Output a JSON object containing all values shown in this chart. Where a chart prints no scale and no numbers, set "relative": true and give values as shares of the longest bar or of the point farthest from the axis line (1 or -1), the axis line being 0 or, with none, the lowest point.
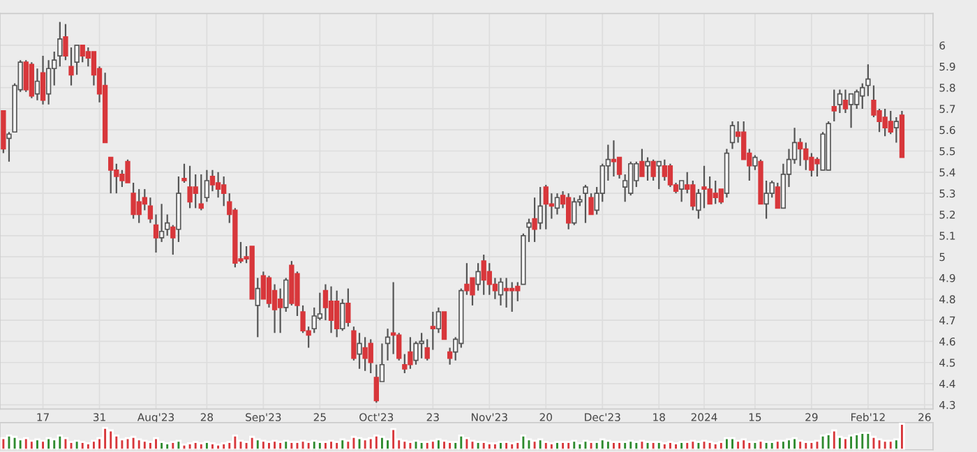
{
  "chart_data": [
    {
      "type": "candlestick",
      "colors": [
        "#d8373b",
        "#f5f5f5",
        "#f5f5f5",
        "#f5f5f5",
        "#d8373b",
        "#d8373b",
        "#f5f5f5",
        "#d8373b",
        "#f5f5f5",
        "#f5f5f5",
        "#f5f5f5",
        "#d8373b",
        "#d8373b",
        "#f5f5f5",
        "#d8373b",
        "#d8373b",
        "#d8373b",
        "#d8373b",
        "#d8373b",
        "#d8373b",
        "#d8373b",
        "#d8373b",
        "#d8373b",
        "#d8373b",
        "#d8373b",
        "#d8373b",
        "#d8373b",
        "#d8373b",
        "#f5f5f5",
        "#f5f5f5",
        "#d8373b",
        "#f5f5f5",
        "#d8373b",
        "#d8373b",
        "#d8373b",
        "#d8373b",
        "#f5f5f5",
        "#d8373b",
        "#d8373b",
        "#d8373b",
        "#d8373b",
        "#d8373b",
        "#d8373b",
        "#d8373b",
        "#d8373b",
        "#f5f5f5",
        "#d8373b",
        "#d8373b",
        "#d8373b",
        "#d8373b",
        "#f5f5f5",
        "#d8373b",
        "#d8373b",
        "#d8373b",
        "#d8373b",
        "#f5f5f5",
        "#f5f5f5",
        "#d8373b",
        "#d8373b",
        "#d8373b",
        "#f5f5f5",
        "#d8373b",
        "#d8373b",
        "#f5f5f5",
        "#d8373b",
        "#d8373b",
        "#d8373b",
        "#f5f5f5",
        "#f5f5f5",
        "#d8373b",
        "#d8373b",
        "#d8373b",
        "#d8373b",
        "#f5f5f5",
        "#f5f5f5",
        "#d8373b",
        "#d8373b",
        "#f5f5f5",
        "#d8373b",
        "#d8373b",
        "#f5f5f5",
        "#f5f5f5",
        "#d8373b",
        "#d8373b",
        "#f5f5f5",
        "#d8373b",
        "#d8373b",
        "#d8373b",
        "#f5f5f5",
        "#d8373b",
        "#d8373b",
        "#d8373b",
        "#f5f5f5",
        "#f5f5f5",
        "#d8373b",
        "#f5f5f5",
        "#d8373b",
        "#d8373b",
        "#f5f5f5",
        "#d8373b",
        "#d8373b",
        "#f5f5f5",
        "#f5f5f5",
        "#f5f5f5",
        "#d8373b",
        "#f5f5f5",
        "#f5f5f5",
        "#f5f5f5",
        "#d8373b",
        "#d8373b",
        "#f5f5f5",
        "#f5f5f5",
        "#f5f5f5",
        "#d8373b",
        "#f5f5f5",
        "#d8373b",
        "#f5f5f5",
        "#d8373b",
        "#d8373b",
        "#d8373b",
        "#f5f5f5",
        "#d8373b",
        "#d8373b",
        "#f5f5f5",
        "#d8373b",
        "#d8373b",
        "#d8373b",
        "#d8373b",
        "#f5f5f5",
        "#f5f5f5",
        "#d8373b",
        "#d8373b",
        "#d8373b",
        "#f5f5f5",
        "#d8373b",
        "#f5f5f5",
        "#f5f5f5",
        "#d8373b",
        "#f5f5f5",
        "#f5f5f5",
        "#f5f5f5",
        "#d8373b",
        "#d8373b",
        "#d8373b",
        "#d8373b",
        "#f5f5f5",
        "#f5f5f5",
        "#d8373b",
        "#f5f5f5",
        "#d8373b",
        "#f5f5f5",
        "#f5f5f5",
        "#f5f5f5",
        "#f5f5f5",
        "#d8373b",
        "#d8373b",
        "#d8373b",
        "#d8373b",
        "#f5f5f5",
        "#d8373b",
        null,
        null,
        null,
        null
      ],
      "categories": [
        null,
        null,
        null,
        null,
        null,
        null,
        null,
        "17",
        null,
        null,
        null,
        null,
        null,
        null,
        null,
        null,
        null,
        "31",
        null,
        null,
        null,
        null,
        null,
        null,
        null,
        null,
        null,
        "Aug'23",
        null,
        null,
        null,
        null,
        null,
        null,
        null,
        null,
        "28",
        null,
        null,
        null,
        null,
        null,
        null,
        null,
        null,
        null,
        "Sep'23",
        null,
        null,
        null,
        null,
        null,
        null,
        null,
        null,
        null,
        "25",
        null,
        null,
        null,
        null,
        null,
        null,
        null,
        null,
        null,
        "Oct'23",
        null,
        null,
        null,
        null,
        null,
        null,
        null,
        null,
        null,
        "23",
        null,
        null,
        null,
        null,
        null,
        null,
        null,
        null,
        null,
        "Nov'23",
        null,
        null,
        null,
        null,
        null,
        null,
        null,
        null,
        null,
        "20",
        null,
        null,
        null,
        null,
        null,
        null,
        null,
        null,
        null,
        "Dec'23",
        null,
        null,
        null,
        null,
        null,
        null,
        null,
        null,
        null,
        "18",
        null,
        null,
        null,
        null,
        null,
        null,
        null,
        "2024",
        null,
        null,
        null,
        null,
        null,
        null,
        null,
        null,
        "15",
        null,
        null,
        null,
        null,
        null,
        null,
        null,
        null,
        null,
        "29",
        null,
        null,
        null,
        null,
        null,
        null,
        null,
        null,
        null,
        "Feb'12",
        null,
        null,
        null,
        null,
        null,
        null,
        null,
        null,
        null,
        "26"
      ],
      "ohlc": [
        [
          5.69,
          5.69,
          5.49,
          5.51
        ],
        [
          5.56,
          5.59,
          5.45,
          5.58
        ],
        [
          5.59,
          5.82,
          5.59,
          5.81
        ],
        [
          5.79,
          5.93,
          5.78,
          5.92
        ],
        [
          5.92,
          5.93,
          5.78,
          5.79
        ],
        [
          5.91,
          5.92,
          5.75,
          5.76
        ],
        [
          5.77,
          5.89,
          5.74,
          5.83
        ],
        [
          5.87,
          5.95,
          5.72,
          5.74
        ],
        [
          5.77,
          5.93,
          5.72,
          5.89
        ],
        [
          5.89,
          5.97,
          5.81,
          5.93
        ],
        [
          5.95,
          6.11,
          5.9,
          6.03
        ],
        [
          6.04,
          6.1,
          5.93,
          5.95
        ],
        [
          5.9,
          5.99,
          5.81,
          5.86
        ],
        [
          5.92,
          6.0,
          5.86,
          6.0
        ],
        [
          6.0,
          6.0,
          5.92,
          5.95
        ],
        [
          5.97,
          5.99,
          5.9,
          5.94
        ],
        [
          5.97,
          5.97,
          5.81,
          5.86
        ],
        [
          5.89,
          5.9,
          5.73,
          5.77
        ],
        [
          5.81,
          5.87,
          5.54,
          5.54
        ],
        [
          5.47,
          5.47,
          5.3,
          5.41
        ],
        [
          5.41,
          5.44,
          5.3,
          5.38
        ],
        [
          5.39,
          5.41,
          5.33,
          5.36
        ],
        [
          5.45,
          5.46,
          5.35,
          5.35
        ],
        [
          5.3,
          5.35,
          5.18,
          5.2
        ],
        [
          5.26,
          5.32,
          5.16,
          5.2
        ],
        [
          5.28,
          5.32,
          5.22,
          5.25
        ],
        [
          5.24,
          5.28,
          5.16,
          5.18
        ],
        [
          5.15,
          5.2,
          5.02,
          5.09
        ],
        [
          5.09,
          5.25,
          5.07,
          5.12
        ],
        [
          5.13,
          5.2,
          5.1,
          5.16
        ],
        [
          5.14,
          5.15,
          5.01,
          5.09
        ],
        [
          5.13,
          5.38,
          5.07,
          5.3
        ],
        [
          5.37,
          5.44,
          5.35,
          5.36
        ],
        [
          5.33,
          5.43,
          5.23,
          5.26
        ],
        [
          5.33,
          5.39,
          5.23,
          5.3
        ],
        [
          5.25,
          5.39,
          5.22,
          5.23
        ],
        [
          5.28,
          5.41,
          5.26,
          5.36
        ],
        [
          5.38,
          5.41,
          5.31,
          5.34
        ],
        [
          5.35,
          5.4,
          5.28,
          5.32
        ],
        [
          5.34,
          5.38,
          5.24,
          5.3
        ],
        [
          5.26,
          5.3,
          5.16,
          5.2
        ],
        [
          5.22,
          5.23,
          4.95,
          4.97
        ],
        [
          4.99,
          5.07,
          4.97,
          4.98
        ],
        [
          5.0,
          5.05,
          4.97,
          4.99
        ],
        [
          5.05,
          5.05,
          4.8,
          4.8
        ],
        [
          4.77,
          4.9,
          4.62,
          4.85
        ],
        [
          4.91,
          4.93,
          4.8,
          4.8
        ],
        [
          4.9,
          4.91,
          4.76,
          4.78
        ],
        [
          4.84,
          4.87,
          4.64,
          4.75
        ],
        [
          4.8,
          4.85,
          4.64,
          4.76
        ],
        [
          4.76,
          4.9,
          4.74,
          4.89
        ],
        [
          4.96,
          4.98,
          4.77,
          4.78
        ],
        [
          4.92,
          4.93,
          4.72,
          4.77
        ],
        [
          4.74,
          4.77,
          4.64,
          4.65
        ],
        [
          4.65,
          4.67,
          4.57,
          4.63
        ],
        [
          4.66,
          4.76,
          4.64,
          4.72
        ],
        [
          4.71,
          4.83,
          4.7,
          4.73
        ],
        [
          4.84,
          4.87,
          4.7,
          4.76
        ],
        [
          4.79,
          4.86,
          4.64,
          4.7
        ],
        [
          4.79,
          4.84,
          4.62,
          4.66
        ],
        [
          4.66,
          4.8,
          4.65,
          4.78
        ],
        [
          4.78,
          4.85,
          4.67,
          4.69
        ],
        [
          4.65,
          4.67,
          4.51,
          4.52
        ],
        [
          4.54,
          4.64,
          4.47,
          4.59
        ],
        [
          4.57,
          4.62,
          4.46,
          4.52
        ],
        [
          4.59,
          4.61,
          4.45,
          4.5
        ],
        [
          4.43,
          4.49,
          4.31,
          4.32
        ],
        [
          4.41,
          4.59,
          4.41,
          4.49
        ],
        [
          4.59,
          4.66,
          4.51,
          4.62
        ],
        [
          4.64,
          4.88,
          4.54,
          4.63
        ],
        [
          4.63,
          4.64,
          4.51,
          4.52
        ],
        [
          4.49,
          4.54,
          4.45,
          4.47
        ],
        [
          4.55,
          4.62,
          4.47,
          4.49
        ],
        [
          4.51,
          4.6,
          4.49,
          4.59
        ],
        [
          4.59,
          4.64,
          4.52,
          4.6
        ],
        [
          4.57,
          4.61,
          4.51,
          4.52
        ],
        [
          4.67,
          4.74,
          4.56,
          4.66
        ],
        [
          4.66,
          4.76,
          4.64,
          4.74
        ],
        [
          4.74,
          4.74,
          4.61,
          4.61
        ],
        [
          4.55,
          4.57,
          4.49,
          4.52
        ],
        [
          4.55,
          4.62,
          4.51,
          4.61
        ],
        [
          4.59,
          4.85,
          4.57,
          4.84
        ],
        [
          4.87,
          4.97,
          4.82,
          4.84
        ],
        [
          4.9,
          4.9,
          4.77,
          4.82
        ],
        [
          4.87,
          4.97,
          4.84,
          4.93
        ],
        [
          4.98,
          5.01,
          4.82,
          4.89
        ],
        [
          4.93,
          4.97,
          4.82,
          4.87
        ],
        [
          4.87,
          4.9,
          4.8,
          4.84
        ],
        [
          4.82,
          4.9,
          4.77,
          4.88
        ],
        [
          4.85,
          4.9,
          4.76,
          4.84
        ],
        [
          4.85,
          4.88,
          4.74,
          4.84
        ],
        [
          4.86,
          4.88,
          4.79,
          4.84
        ],
        [
          4.87,
          5.11,
          4.87,
          5.1
        ],
        [
          5.14,
          5.18,
          5.07,
          5.16
        ],
        [
          5.18,
          5.28,
          5.07,
          5.13
        ],
        [
          5.16,
          5.33,
          5.13,
          5.24
        ],
        [
          5.33,
          5.34,
          5.13,
          5.25
        ],
        [
          5.25,
          5.3,
          5.18,
          5.24
        ],
        [
          5.23,
          5.3,
          5.2,
          5.28
        ],
        [
          5.29,
          5.31,
          5.23,
          5.25
        ],
        [
          5.28,
          5.3,
          5.13,
          5.16
        ],
        [
          5.16,
          5.28,
          5.15,
          5.26
        ],
        [
          5.26,
          5.29,
          5.24,
          5.27
        ],
        [
          5.3,
          5.34,
          5.16,
          5.33
        ],
        [
          5.28,
          5.3,
          5.2,
          5.2
        ],
        [
          5.22,
          5.33,
          5.2,
          5.3
        ],
        [
          5.3,
          5.44,
          5.26,
          5.43
        ],
        [
          5.43,
          5.53,
          5.36,
          5.46
        ],
        [
          5.46,
          5.55,
          5.38,
          5.45
        ],
        [
          5.47,
          5.47,
          5.37,
          5.39
        ],
        [
          5.33,
          5.39,
          5.26,
          5.36
        ],
        [
          5.3,
          5.45,
          5.29,
          5.44
        ],
        [
          5.36,
          5.45,
          5.33,
          5.44
        ],
        [
          5.45,
          5.51,
          5.38,
          5.38
        ],
        [
          5.43,
          5.47,
          5.36,
          5.45
        ],
        [
          5.45,
          5.46,
          5.36,
          5.38
        ],
        [
          5.43,
          5.45,
          5.32,
          5.45
        ],
        [
          5.43,
          5.46,
          5.36,
          5.38
        ],
        [
          5.43,
          5.44,
          5.33,
          5.34
        ],
        [
          5.34,
          5.35,
          5.3,
          5.31
        ],
        [
          5.32,
          5.36,
          5.26,
          5.36
        ],
        [
          5.34,
          5.4,
          5.3,
          5.32
        ],
        [
          5.34,
          5.36,
          5.22,
          5.24
        ],
        [
          5.22,
          5.32,
          5.18,
          5.3
        ],
        [
          5.33,
          5.43,
          5.23,
          5.32
        ],
        [
          5.32,
          5.38,
          5.25,
          5.25
        ],
        [
          5.3,
          5.36,
          5.25,
          5.28
        ],
        [
          5.32,
          5.32,
          5.25,
          5.26
        ],
        [
          5.3,
          5.51,
          5.28,
          5.49
        ],
        [
          5.54,
          5.64,
          5.51,
          5.62
        ],
        [
          5.59,
          5.64,
          5.54,
          5.57
        ],
        [
          5.59,
          5.64,
          5.46,
          5.46
        ],
        [
          5.49,
          5.51,
          5.36,
          5.43
        ],
        [
          5.43,
          5.48,
          5.41,
          5.47
        ],
        [
          5.45,
          5.46,
          5.25,
          5.25
        ],
        [
          5.25,
          5.36,
          5.18,
          5.3
        ],
        [
          5.3,
          5.36,
          5.28,
          5.35
        ],
        [
          5.33,
          5.35,
          5.23,
          5.23
        ],
        [
          5.23,
          5.44,
          5.23,
          5.39
        ],
        [
          5.39,
          5.51,
          5.33,
          5.46
        ],
        [
          5.46,
          5.61,
          5.44,
          5.54
        ],
        [
          5.54,
          5.56,
          5.43,
          5.51
        ],
        [
          5.51,
          5.54,
          5.41,
          5.46
        ],
        [
          5.47,
          5.49,
          5.38,
          5.41
        ],
        [
          5.46,
          5.47,
          5.38,
          5.44
        ],
        [
          5.41,
          5.59,
          5.41,
          5.58
        ],
        [
          5.41,
          5.64,
          5.41,
          5.63
        ],
        [
          5.71,
          5.79,
          5.64,
          5.69
        ],
        [
          5.72,
          5.79,
          5.68,
          5.77
        ],
        [
          5.74,
          5.79,
          5.68,
          5.7
        ],
        [
          5.72,
          5.77,
          5.61,
          5.77
        ],
        [
          5.72,
          5.79,
          5.7,
          5.78
        ],
        [
          5.76,
          5.82,
          5.7,
          5.8
        ],
        [
          5.81,
          5.91,
          5.76,
          5.84
        ],
        [
          5.74,
          5.81,
          5.66,
          5.67
        ],
        [
          5.69,
          5.7,
          5.59,
          5.64
        ],
        [
          5.66,
          5.7,
          5.57,
          5.61
        ],
        [
          5.64,
          5.69,
          5.58,
          5.59
        ],
        [
          5.61,
          5.66,
          5.54,
          5.64
        ],
        [
          5.67,
          5.69,
          5.47,
          5.47
        ],
        null,
        null,
        null,
        null
      ],
      "ylim": [
        4.28,
        6.15
      ],
      "yticks": [
        4.3,
        4.4,
        4.5,
        4.6,
        4.7,
        4.8,
        4.9,
        5,
        5.1,
        5.2,
        5.3,
        5.4,
        5.5,
        5.6,
        5.7,
        5.8,
        5.9,
        6
      ],
      "grid": true
    },
    {
      "type": "bar",
      "relative": true,
      "categories": [
        null,
        null,
        null,
        null,
        null,
        null,
        null,
        null,
        null,
        null,
        null,
        null,
        null,
        null,
        null,
        null,
        null,
        null,
        null,
        null,
        null,
        null,
        null,
        null,
        null,
        null,
        null,
        null,
        null,
        null,
        null,
        null,
        null,
        null,
        null,
        null,
        null,
        null,
        null,
        null,
        null,
        null,
        null,
        null,
        null,
        null,
        null,
        null,
        null,
        null,
        null,
        null,
        null,
        null,
        null,
        null,
        null,
        null,
        null,
        null,
        null,
        null,
        null,
        null,
        null,
        null,
        null,
        null,
        null,
        null,
        null,
        null,
        null,
        null,
        null,
        null,
        null,
        null,
        null,
        null,
        null,
        null,
        null,
        null,
        null,
        null,
        null,
        null,
        null,
        null,
        null,
        null,
        null,
        null,
        null,
        null,
        null,
        null,
        null,
        null,
        null,
        null,
        null,
        null,
        null,
        null,
        null,
        null,
        null,
        null,
        null,
        null,
        null,
        null,
        null,
        null,
        null,
        null,
        null,
        null,
        null,
        null,
        null,
        null,
        null,
        null,
        null,
        null,
        null,
        null,
        null,
        null,
        null,
        null,
        null,
        null,
        null,
        null,
        null,
        null,
        null,
        null,
        null,
        null,
        null,
        null,
        null,
        null,
        null,
        null,
        null,
        null,
        null,
        null,
        null,
        null,
        null,
        null,
        null,
        null,
        null,
        null,
        null,
        null
      ],
      "values": [
        0.45,
        0.55,
        0.5,
        0.4,
        0.45,
        0.35,
        0.4,
        0.35,
        0.45,
        0.4,
        0.55,
        0.45,
        0.3,
        0.35,
        0.3,
        0.25,
        0.35,
        0.45,
        0.85,
        0.75,
        0.55,
        0.4,
        0.45,
        0.5,
        0.4,
        0.35,
        0.3,
        0.45,
        0.3,
        0.25,
        0.3,
        0.35,
        0.2,
        0.25,
        0.3,
        0.25,
        0.3,
        0.25,
        0.2,
        0.25,
        0.3,
        0.55,
        0.35,
        0.3,
        0.5,
        0.4,
        0.35,
        0.3,
        0.35,
        0.3,
        0.35,
        0.3,
        0.3,
        0.35,
        0.3,
        0.35,
        0.3,
        0.3,
        0.35,
        0.3,
        0.4,
        0.35,
        0.5,
        0.45,
        0.4,
        0.45,
        0.55,
        0.5,
        0.4,
        0.8,
        0.4,
        0.35,
        0.3,
        0.35,
        0.3,
        0.3,
        0.35,
        0.4,
        0.35,
        0.3,
        0.3,
        0.55,
        0.45,
        0.35,
        0.3,
        0.3,
        0.25,
        0.25,
        0.3,
        0.3,
        0.25,
        0.3,
        0.55,
        0.4,
        0.35,
        0.4,
        0.3,
        0.25,
        0.3,
        0.3,
        0.3,
        0.35,
        0.25,
        0.35,
        0.3,
        0.3,
        0.4,
        0.35,
        0.3,
        0.3,
        0.3,
        0.35,
        0.3,
        0.35,
        0.3,
        0.3,
        0.3,
        0.25,
        0.3,
        0.25,
        0.3,
        0.3,
        0.35,
        0.3,
        0.35,
        0.3,
        0.25,
        0.3,
        0.45,
        0.45,
        0.35,
        0.4,
        0.3,
        0.3,
        0.35,
        0.3,
        0.3,
        0.35,
        0.35,
        0.4,
        0.45,
        0.35,
        0.3,
        0.3,
        0.35,
        0.55,
        0.6,
        0.75,
        0.5,
        0.45,
        0.55,
        0.6,
        0.65,
        0.65,
        0.5,
        0.4,
        0.35,
        0.35,
        0.4,
        1.0,
        null,
        null,
        null,
        null
      ],
      "colors": [
        "#d8373b",
        "#2e8b2e",
        "#2e8b2e",
        "#2e8b2e",
        "#d8373b",
        "#d8373b",
        "#2e8b2e",
        "#d8373b",
        "#2e8b2e",
        "#2e8b2e",
        "#2e8b2e",
        "#d8373b",
        "#d8373b",
        "#2e8b2e",
        "#d8373b",
        "#d8373b",
        "#d8373b",
        "#d8373b",
        "#d8373b",
        "#d8373b",
        "#d8373b",
        "#d8373b",
        "#d8373b",
        "#d8373b",
        "#d8373b",
        "#d8373b",
        "#d8373b",
        "#d8373b",
        "#2e8b2e",
        "#2e8b2e",
        "#d8373b",
        "#2e8b2e",
        "#d8373b",
        "#d8373b",
        "#d8373b",
        "#d8373b",
        "#2e8b2e",
        "#d8373b",
        "#d8373b",
        "#d8373b",
        "#d8373b",
        "#d8373b",
        "#d8373b",
        "#d8373b",
        "#d8373b",
        "#2e8b2e",
        "#d8373b",
        "#d8373b",
        "#d8373b",
        "#d8373b",
        "#2e8b2e",
        "#d8373b",
        "#d8373b",
        "#d8373b",
        "#d8373b",
        "#2e8b2e",
        "#2e8b2e",
        "#d8373b",
        "#d8373b",
        "#d8373b",
        "#2e8b2e",
        "#d8373b",
        "#d8373b",
        "#2e8b2e",
        "#d8373b",
        "#d8373b",
        "#d8373b",
        "#2e8b2e",
        "#2e8b2e",
        "#d8373b",
        "#d8373b",
        "#d8373b",
        "#d8373b",
        "#2e8b2e",
        "#2e8b2e",
        "#d8373b",
        "#d8373b",
        "#2e8b2e",
        "#d8373b",
        "#d8373b",
        "#2e8b2e",
        "#2e8b2e",
        "#d8373b",
        "#d8373b",
        "#2e8b2e",
        "#d8373b",
        "#d8373b",
        "#d8373b",
        "#2e8b2e",
        "#d8373b",
        "#d8373b",
        "#d8373b",
        "#2e8b2e",
        "#2e8b2e",
        "#d8373b",
        "#2e8b2e",
        "#d8373b",
        "#d8373b",
        "#2e8b2e",
        "#d8373b",
        "#d8373b",
        "#2e8b2e",
        "#2e8b2e",
        "#2e8b2e",
        "#d8373b",
        "#2e8b2e",
        "#2e8b2e",
        "#2e8b2e",
        "#d8373b",
        "#d8373b",
        "#2e8b2e",
        "#2e8b2e",
        "#2e8b2e",
        "#d8373b",
        "#2e8b2e",
        "#d8373b",
        "#2e8b2e",
        "#d8373b",
        "#d8373b",
        "#d8373b",
        "#2e8b2e",
        "#d8373b",
        "#d8373b",
        "#2e8b2e",
        "#d8373b",
        "#d8373b",
        "#d8373b",
        "#d8373b",
        "#2e8b2e",
        "#2e8b2e",
        "#d8373b",
        "#d8373b",
        "#d8373b",
        "#2e8b2e",
        "#d8373b",
        "#2e8b2e",
        "#2e8b2e",
        "#d8373b",
        "#2e8b2e",
        "#2e8b2e",
        "#2e8b2e",
        "#d8373b",
        "#d8373b",
        "#d8373b",
        "#d8373b",
        "#2e8b2e",
        "#2e8b2e",
        "#d8373b",
        "#2e8b2e",
        "#d8373b",
        "#2e8b2e",
        "#2e8b2e",
        "#2e8b2e",
        "#2e8b2e",
        "#d8373b",
        "#d8373b",
        "#d8373b",
        "#d8373b",
        "#2e8b2e",
        "#d8373b",
        null,
        null,
        null,
        null
      ]
    }
  ]
}
